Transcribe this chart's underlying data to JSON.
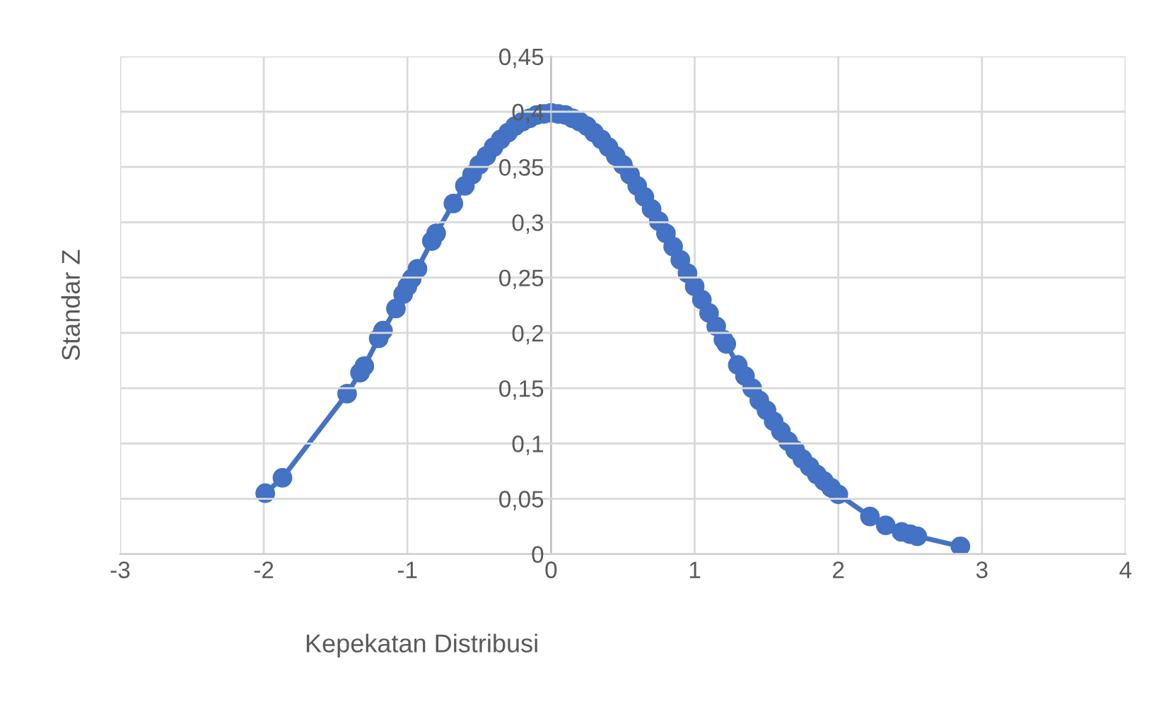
{
  "chart_data": {
    "type": "line",
    "xlabel": "Kepekatan Distribusi",
    "ylabel": "Standar Z",
    "x": [
      -1.99,
      -1.87,
      -1.42,
      -1.33,
      -1.3,
      -1.2,
      -1.17,
      -1.08,
      -1.03,
      -1.0,
      -0.97,
      -0.93,
      -0.83,
      -0.8,
      -0.68,
      -0.6,
      -0.55,
      -0.5,
      -0.45,
      -0.4,
      -0.35,
      -0.3,
      -0.25,
      -0.2,
      -0.15,
      -0.1,
      -0.05,
      0.0,
      0.05,
      0.1,
      0.15,
      0.2,
      0.25,
      0.3,
      0.35,
      0.4,
      0.45,
      0.5,
      0.55,
      0.6,
      0.65,
      0.7,
      0.75,
      0.8,
      0.85,
      0.9,
      0.95,
      1.0,
      1.05,
      1.1,
      1.15,
      1.2,
      1.22,
      1.3,
      1.35,
      1.4,
      1.45,
      1.5,
      1.55,
      1.6,
      1.65,
      1.7,
      1.75,
      1.8,
      1.85,
      1.9,
      1.95,
      2.0,
      2.22,
      2.33,
      2.44,
      2.5,
      2.55,
      2.85
    ],
    "series": [
      {
        "color": "#4472c4",
        "values": [
          0.055,
          0.069,
          0.145,
          0.164,
          0.17,
          0.195,
          0.202,
          0.222,
          0.235,
          0.242,
          0.249,
          0.258,
          0.283,
          0.29,
          0.317,
          0.333,
          0.343,
          0.352,
          0.36,
          0.368,
          0.375,
          0.381,
          0.387,
          0.391,
          0.394,
          0.397,
          0.398,
          0.399,
          0.398,
          0.397,
          0.394,
          0.391,
          0.387,
          0.381,
          0.375,
          0.368,
          0.36,
          0.352,
          0.343,
          0.333,
          0.323,
          0.312,
          0.301,
          0.29,
          0.278,
          0.266,
          0.254,
          0.242,
          0.23,
          0.218,
          0.206,
          0.194,
          0.19,
          0.171,
          0.161,
          0.15,
          0.139,
          0.13,
          0.12,
          0.111,
          0.102,
          0.094,
          0.086,
          0.079,
          0.072,
          0.066,
          0.06,
          0.054,
          0.034,
          0.026,
          0.02,
          0.018,
          0.016,
          0.007
        ]
      }
    ],
    "xlim": [
      -3,
      4
    ],
    "xticks": [
      -3,
      -2,
      -1,
      0,
      1,
      2,
      3,
      4
    ],
    "ylim": [
      0,
      0.45
    ],
    "yticks": [
      0,
      {
        "value": 0.05,
        "label": "0,05"
      },
      {
        "value": 0.1,
        "label": "0,1"
      },
      {
        "value": 0.15,
        "label": "0,15"
      },
      {
        "value": 0.2,
        "label": "0,2"
      },
      {
        "value": 0.25,
        "label": "0,25"
      },
      {
        "value": 0.3,
        "label": "0,3"
      },
      {
        "value": 0.35,
        "label": "0,35"
      },
      {
        "value": 0.4,
        "label": "0,4"
      },
      {
        "value": 0.45,
        "label": "0,45"
      }
    ],
    "grid": true,
    "marker": "circle",
    "line_style": "solid",
    "legend": false
  }
}
